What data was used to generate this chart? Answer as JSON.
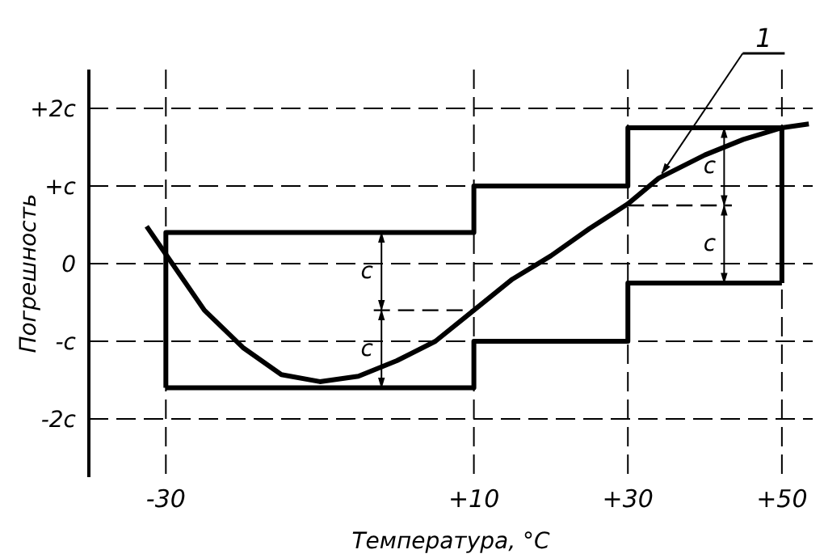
{
  "chart_data": {
    "type": "line",
    "xlabel": "Температура, °C",
    "ylabel": "Погрешность",
    "xlim": [
      -40,
      54
    ],
    "xticks": [
      -30,
      {
        "value": 10,
        "label": "+10"
      },
      {
        "value": 30,
        "label": "+30"
      },
      {
        "value": 50,
        "label": "+50"
      }
    ],
    "ylim": [
      -2.75,
      2.5
    ],
    "yticks": [
      {
        "value": -2,
        "label": "-2c"
      },
      {
        "value": -1,
        "label": "-c"
      },
      0,
      {
        "value": 1,
        "label": "+c"
      },
      {
        "value": 2,
        "label": "+2c"
      }
    ],
    "grid": true,
    "marker": "none",
    "series": [
      {
        "color": "#000000",
        "x": [
          -30,
          -30,
          10,
          10,
          30,
          30,
          50,
          50
        ],
        "values": [
          -1.6,
          0.4,
          0.4,
          1,
          1,
          1.75,
          1.75,
          -0.25
        ]
      },
      {
        "color": "#000000",
        "x": [
          -30,
          10,
          10,
          30,
          30,
          50
        ],
        "values": [
          -1.6,
          -1.6,
          -1,
          -1,
          -0.25,
          -0.25
        ]
      },
      {
        "color": "#000000",
        "x": [
          -32.5,
          -30,
          -25,
          -20,
          -15,
          -10,
          -5,
          0,
          5,
          10,
          15,
          20,
          25,
          30,
          34,
          40,
          45,
          50,
          53.5
        ],
        "values": [
          0.48,
          0.12,
          -0.6,
          -1.08,
          -1.43,
          -1.52,
          -1.45,
          -1.25,
          -1.0,
          -0.6,
          -0.2,
          0.1,
          0.45,
          0.77,
          1.1,
          1.4,
          1.6,
          1.75,
          1.8
        ]
      },
      {
        "color": "#000000",
        "line_style": "dashed",
        "x": [
          -3,
          10
        ],
        "values": [
          -0.6,
          -0.6
        ]
      },
      {
        "color": "#000000",
        "line_style": "dashed",
        "x": [
          30,
          43.5
        ],
        "values": [
          0.75,
          0.75
        ]
      }
    ],
    "annotations": [
      {
        "text": "1",
        "x": 34,
        "y": 1.1
      },
      {
        "text": "c",
        "x": -2,
        "y": 0.4
      },
      {
        "text": "c",
        "x": -2,
        "y": -1.6
      },
      {
        "text": "c",
        "x": 42.5,
        "y": 1.75
      },
      {
        "text": "c",
        "x": 42.5,
        "y": -0.25
      }
    ]
  }
}
